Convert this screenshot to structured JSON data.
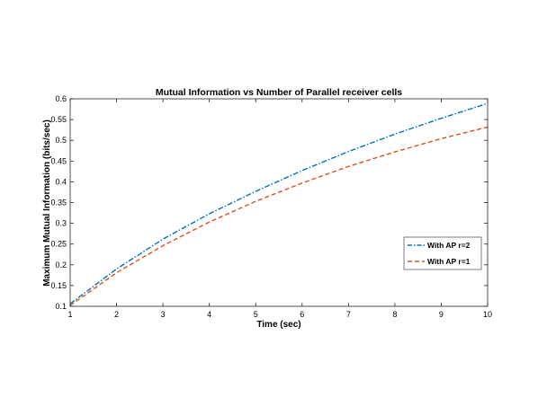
{
  "chart_data": {
    "type": "line",
    "title": "Mutual Information vs Number of Parallel receiver cells",
    "xlabel": "Time (sec)",
    "ylabel": "Maximum Mutual Information (bits/sec)",
    "xlim": [
      1,
      10
    ],
    "ylim": [
      0.1,
      0.6
    ],
    "xticks": [
      1,
      2,
      3,
      4,
      5,
      6,
      7,
      8,
      9,
      10
    ],
    "yticks": [
      0.1,
      0.15,
      0.2,
      0.25,
      0.3,
      0.35,
      0.4,
      0.45,
      0.5,
      0.55,
      0.6
    ],
    "grid": false,
    "box": true,
    "legend_position": "center-right",
    "x": [
      1,
      2,
      3,
      4,
      5,
      6,
      7,
      8,
      9,
      10
    ],
    "series": [
      {
        "name": "With AP r=2",
        "color": "#0072BD",
        "style": "dash-dot",
        "values": [
          0.106,
          0.19,
          0.262,
          0.323,
          0.377,
          0.427,
          0.473,
          0.515,
          0.553,
          0.589
        ]
      },
      {
        "name": "With AP r=1",
        "color": "#D95319",
        "style": "dashed",
        "values": [
          0.102,
          0.181,
          0.246,
          0.303,
          0.353,
          0.397,
          0.437,
          0.472,
          0.504,
          0.532
        ]
      }
    ]
  }
}
